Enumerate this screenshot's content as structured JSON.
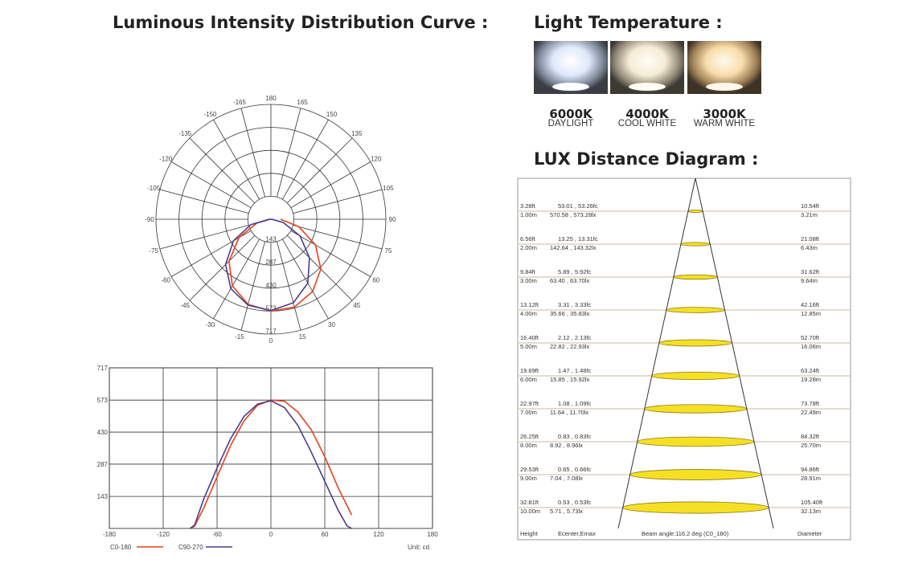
{
  "titles": {
    "intensity": "Luminous Intensity Distribution Curve :",
    "temperature": "Light Temperature :",
    "lux": "LUX Distance Diagram :"
  },
  "temperatures": [
    {
      "kelvin": "6000K",
      "name": "DAYLIGHT",
      "color": "#e8f0ff"
    },
    {
      "kelvin": "4000K",
      "name": "COOL WHITE",
      "color": "#fbf3e2"
    },
    {
      "kelvin": "3000K",
      "name": "WARM WHITE",
      "color": "#fbe3b8"
    }
  ],
  "polar": {
    "angle_labels": [
      "180",
      "165",
      "150",
      "135",
      "120",
      "105",
      "90",
      "75",
      "60",
      "45",
      "30",
      "15",
      "0",
      "-15",
      "-30",
      "-45",
      "-60",
      "-75",
      "-90",
      "-105",
      "-120",
      "-135",
      "-150",
      "-165"
    ],
    "radial_labels": [
      "143",
      "287",
      "430",
      "573",
      "717"
    ]
  },
  "linear": {
    "y_labels": [
      "717",
      "573",
      "430",
      "287",
      "143"
    ],
    "x_labels": [
      "-180",
      "-120",
      "-60",
      "0",
      "60",
      "120",
      "180"
    ],
    "unit": "Unit: cd"
  },
  "legend": {
    "c0": "C0-180",
    "c90": "C90-270",
    "c0_color": "#e8401c",
    "c90_color": "#4a3c8c"
  },
  "chart_data": {
    "type": "line",
    "xlabel": "",
    "ylabel": "",
    "xlim": [
      -180,
      180
    ],
    "ylim": [
      0,
      717
    ],
    "series": [
      {
        "name": "C0-180",
        "x": [
          -90,
          -85,
          -75,
          -60,
          -45,
          -30,
          -15,
          0,
          15,
          30,
          45,
          60,
          75,
          90
        ],
        "y": [
          0,
          10,
          90,
          230,
          370,
          480,
          550,
          573,
          568,
          520,
          440,
          320,
          180,
          60
        ]
      },
      {
        "name": "C90-270",
        "x": [
          -90,
          -85,
          -75,
          -60,
          -45,
          -30,
          -15,
          0,
          15,
          30,
          45,
          60,
          75,
          85,
          90
        ],
        "y": [
          0,
          15,
          130,
          270,
          400,
          500,
          555,
          570,
          540,
          460,
          340,
          210,
          80,
          10,
          0
        ]
      }
    ]
  },
  "lux": {
    "rows": [
      {
        "ft": "3.28ft",
        "m": "1.00m",
        "fc": "53.01 , 53.26fc",
        "lx": "570.58 , 573.28lx",
        "dft": "10.54ft",
        "dm": "3.21m"
      },
      {
        "ft": "6.56ft",
        "m": "2.00m",
        "fc": "13.25 , 13.31fc",
        "lx": "142.64 , 143.32lx",
        "dft": "21.08ft",
        "dm": "6.43m"
      },
      {
        "ft": "9.84ft",
        "m": "3.00m",
        "fc": "5.89 , 5.92fc",
        "lx": "63.40 , 63.70lx",
        "dft": "31.62ft",
        "dm": "9.64m"
      },
      {
        "ft": "13.12ft",
        "m": "4.00m",
        "fc": "3.31 , 3.33fc",
        "lx": "35.66 , 35.83lx",
        "dft": "42.16ft",
        "dm": "12.85m"
      },
      {
        "ft": "16.40ft",
        "m": "5.00m",
        "fc": "2.12 , 2.13fc",
        "lx": "22.82 , 22.93lx",
        "dft": "52.70ft",
        "dm": "16.06m"
      },
      {
        "ft": "19.69ft",
        "m": "6.00m",
        "fc": "1.47 , 1.48fc",
        "lx": "15.85 , 15.92lx",
        "dft": "63.24ft",
        "dm": "19.28m"
      },
      {
        "ft": "22.97ft",
        "m": "7.00m",
        "fc": "1.08 , 1.09fc",
        "lx": "11.64 , 11.70lx",
        "dft": "73.78ft",
        "dm": "22.49m"
      },
      {
        "ft": "26.25ft",
        "m": "8.00m",
        "fc": "0.83 , 0.83fc",
        "lx": "8.92 , 8.96lx",
        "dft": "84.32ft",
        "dm": "25.70m"
      },
      {
        "ft": "29.53ft",
        "m": "9.00m",
        "fc": "0.65 , 0.66fc",
        "lx": "7.04 , 7.08lx",
        "dft": "94.86ft",
        "dm": "28.91m"
      },
      {
        "ft": "32.81ft",
        "m": "10.00m",
        "fc": "0.53 , 0.53fc",
        "lx": "5.71 , 5.73lx",
        "dft": "105.40ft",
        "dm": "32.13m"
      }
    ],
    "footer": {
      "height": "Height",
      "ecenter": "Ecenter,Emax",
      "beam": "Beam angle:116.2 deg (C0_180)",
      "diameter": "Diameter"
    }
  }
}
